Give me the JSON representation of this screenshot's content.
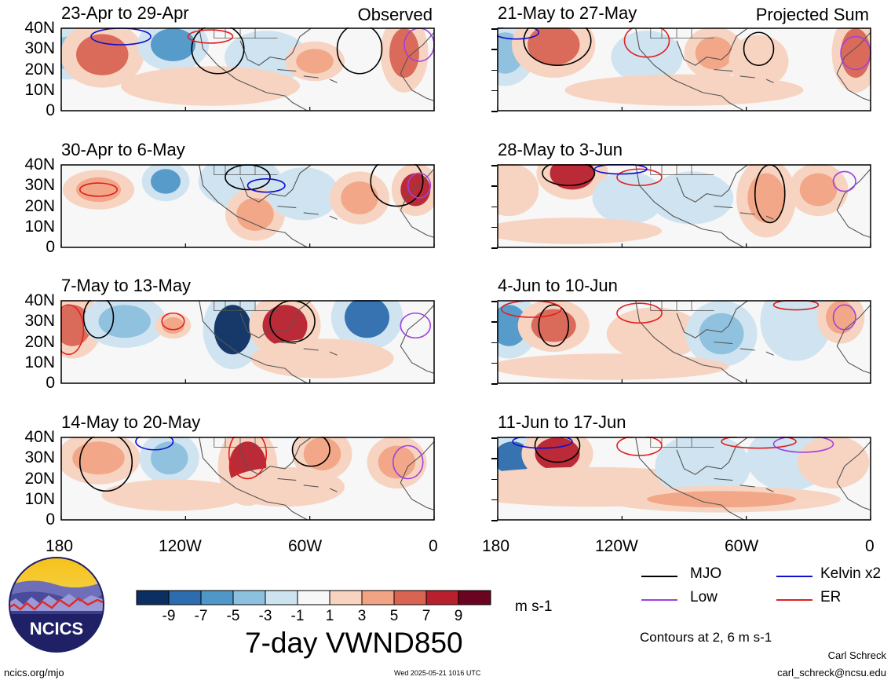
{
  "panels": {
    "left": [
      {
        "title": "23-Apr to 29-Apr",
        "tag": "Observed"
      },
      {
        "title": "30-Apr to 6-May",
        "tag": ""
      },
      {
        "title": "7-May to 13-May",
        "tag": ""
      },
      {
        "title": "14-May to 20-May",
        "tag": ""
      }
    ],
    "right": [
      {
        "title": "21-May to 27-May",
        "tag": "Projected Sum"
      },
      {
        "title": "28-May to 3-Jun",
        "tag": ""
      },
      {
        "title": "4-Jun to 10-Jun",
        "tag": ""
      },
      {
        "title": "11-Jun to 17-Jun",
        "tag": ""
      }
    ]
  },
  "lat_labels": [
    "40N",
    "30N",
    "20N",
    "10N",
    "0"
  ],
  "lon_labels": [
    "180",
    "120W",
    "60W",
    "0"
  ],
  "colorbar": {
    "tick_labels": [
      "-9",
      "-7",
      "-5",
      "-3",
      "-1",
      "1",
      "3",
      "5",
      "7",
      "9"
    ],
    "units": "m s-1",
    "colors": [
      "#0b2f62",
      "#2d6cae",
      "#4f97c9",
      "#8bc0de",
      "#cde3f0",
      "#f7f7f7",
      "#f8d3bf",
      "#f2a383",
      "#d96452",
      "#b8202d",
      "#6b0420"
    ]
  },
  "main_title": "7-day VWND850",
  "legend": {
    "items": [
      {
        "label": "MJO",
        "color": "#000000"
      },
      {
        "label": "Kelvin x2",
        "color": "#1010d0"
      },
      {
        "label": "Low",
        "color": "#a040e0"
      },
      {
        "label": "ER",
        "color": "#e02020"
      }
    ],
    "contour_note": "Contours at 2, 6 m s-1"
  },
  "logo": {
    "text": "NCICS"
  },
  "footer": {
    "site": "ncics.org/mjo",
    "timestamp": "Wed 2025-05-21 1016 UTC",
    "author": "Carl Schreck",
    "email": "carl_schreck@ncsu.edu"
  }
}
